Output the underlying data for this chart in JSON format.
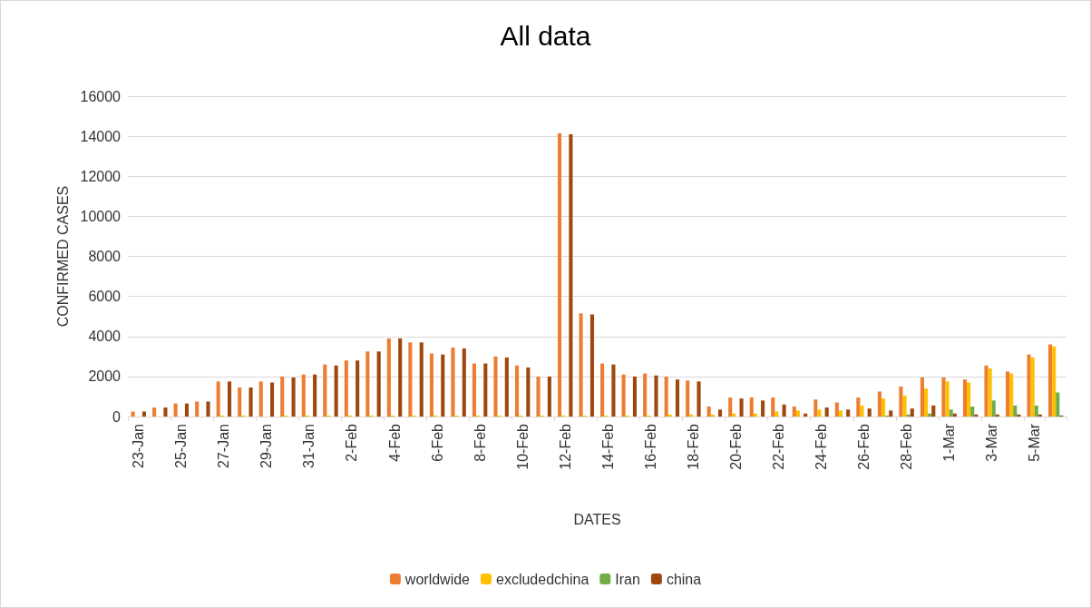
{
  "chart_data": {
    "type": "bar",
    "title": "All data",
    "xlabel": "DATES",
    "ylabel": "CONFIRMED CASES",
    "categories": [
      "23-Jan",
      null,
      "25-Jan",
      null,
      "27-Jan",
      null,
      "29-Jan",
      null,
      "31-Jan",
      null,
      "2-Feb",
      null,
      "4-Feb",
      null,
      "6-Feb",
      null,
      "8-Feb",
      null,
      "10-Feb",
      null,
      "12-Feb",
      null,
      "14-Feb",
      null,
      "16-Feb",
      null,
      "18-Feb",
      null,
      "20-Feb",
      null,
      "22-Feb",
      null,
      "24-Feb",
      null,
      "26-Feb",
      null,
      "28-Feb",
      null,
      "1-Mar",
      null,
      "3-Mar",
      null,
      "5-Mar",
      null
    ],
    "series": [
      {
        "name": "worldwide",
        "color": "#ed7d31",
        "values": [
          250,
          450,
          650,
          750,
          1750,
          1450,
          1750,
          2000,
          2100,
          2600,
          2800,
          3250,
          3900,
          3700,
          3150,
          3450,
          2650,
          3000,
          2550,
          2000,
          14150,
          5150,
          2650,
          2100,
          2150,
          2000,
          1800,
          500,
          950,
          950,
          950,
          500,
          850,
          700,
          950,
          1250,
          1500,
          1950,
          1950,
          1850,
          2550,
          2250,
          3100,
          3600
        ]
      },
      {
        "name": "excludedchina",
        "color": "#ffc000",
        "values": [
          0,
          0,
          0,
          0,
          50,
          50,
          0,
          50,
          50,
          50,
          50,
          50,
          50,
          50,
          50,
          50,
          50,
          50,
          50,
          50,
          50,
          50,
          50,
          50,
          50,
          100,
          100,
          100,
          150,
          150,
          250,
          300,
          350,
          300,
          550,
          900,
          1050,
          1400,
          1750,
          1700,
          2400,
          2150,
          2950,
          3500
        ]
      },
      {
        "name": "Iran",
        "color": "#70ad47",
        "values": [
          0,
          0,
          0,
          0,
          0,
          0,
          0,
          0,
          0,
          0,
          0,
          0,
          0,
          0,
          0,
          0,
          0,
          0,
          0,
          0,
          0,
          0,
          0,
          0,
          0,
          0,
          0,
          0,
          0,
          0,
          0,
          0,
          0,
          0,
          0,
          50,
          100,
          150,
          350,
          500,
          800,
          550,
          550,
          1200
        ]
      },
      {
        "name": "china",
        "color": "#9e480e",
        "values": [
          250,
          450,
          650,
          750,
          1750,
          1450,
          1700,
          1950,
          2100,
          2550,
          2800,
          3250,
          3900,
          3700,
          3100,
          3400,
          2650,
          2950,
          2450,
          2000,
          14100,
          5100,
          2600,
          2000,
          2050,
          1850,
          1750,
          350,
          900,
          800,
          600,
          150,
          450,
          350,
          400,
          300,
          400,
          550,
          150,
          100,
          100,
          100,
          100,
          50
        ]
      }
    ],
    "ylim": [
      0,
      16000
    ],
    "yticks": [
      0,
      2000,
      4000,
      6000,
      8000,
      10000,
      12000,
      14000,
      16000
    ],
    "grid": "y",
    "legend": "bottom"
  }
}
